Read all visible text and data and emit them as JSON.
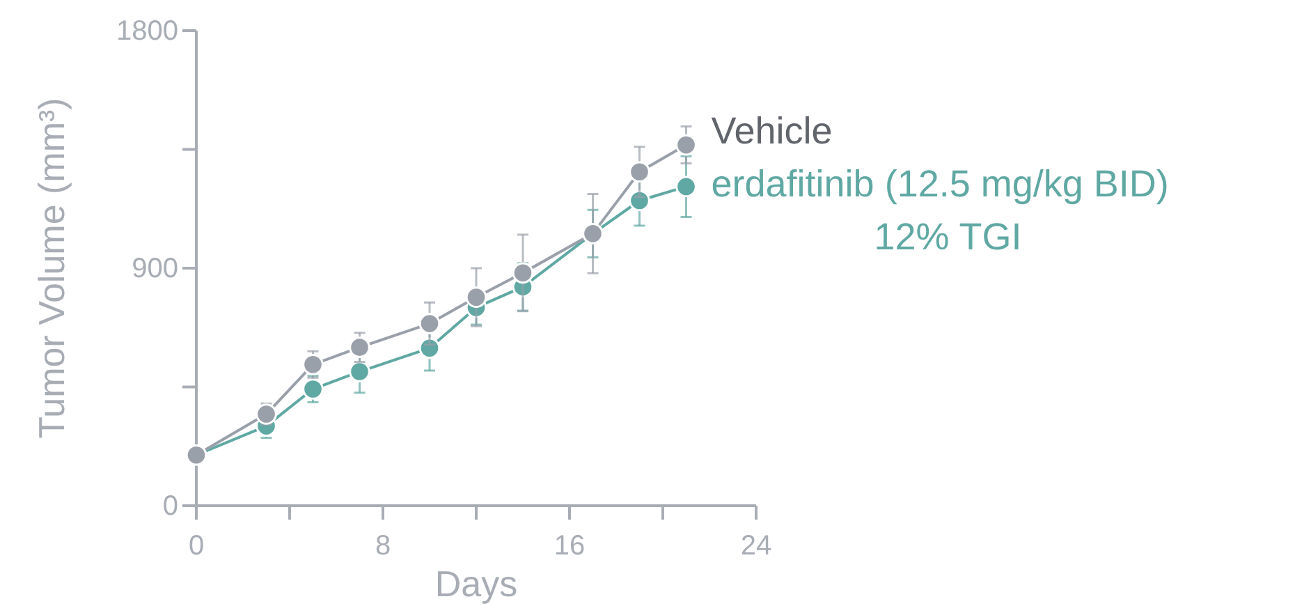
{
  "chart_data": {
    "type": "line",
    "xlabel": "Days",
    "ylabel": "Tumor Volume (mm³)",
    "xlim": [
      0,
      24
    ],
    "xticks": [
      0,
      {
        "value": 4,
        "label": null
      },
      8,
      {
        "value": 12,
        "label": null
      },
      16,
      {
        "value": 20,
        "label": null
      },
      24
    ],
    "ylim": [
      0,
      1800
    ],
    "yticks": [
      0,
      {
        "value": 450,
        "label": null
      },
      900,
      {
        "value": 1350,
        "label": null
      },
      1800
    ],
    "x": [
      0,
      3,
      5,
      7,
      10,
      12,
      14,
      17,
      19,
      21
    ],
    "marker": "circle",
    "grid": false,
    "series": [
      {
        "name": "Vehicle",
        "color": "#9aa0aa",
        "values": [
          192,
          347,
          535,
          600,
          690,
          790,
          882,
          1031,
          1265,
          1367
        ],
        "errors": [
          null,
          40,
          50,
          55,
          80,
          110,
          145,
          150,
          95,
          70
        ]
      },
      {
        "name": "erdafitinib (12.5 mg/kg BID)",
        "color": "#5fa8a3",
        "values": [
          192,
          302,
          442,
          508,
          597,
          751,
          829,
          1031,
          1156,
          1209
        ],
        "errors": [
          null,
          45,
          50,
          80,
          85,
          65,
          90,
          90,
          95,
          115
        ]
      }
    ],
    "annotations": [
      "12% TGI"
    ]
  }
}
